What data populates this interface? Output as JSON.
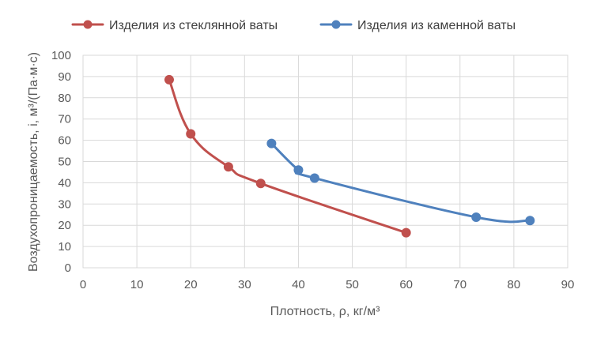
{
  "chart_data": {
    "type": "line",
    "title": "",
    "xlabel": "Плотность, ρ, кг/м³",
    "ylabel": "Воздухопроницаемость, i, м³/(Па·м·с)",
    "xlim": [
      0,
      90
    ],
    "ylim": [
      0,
      100
    ],
    "x_ticks": [
      "0",
      "10",
      "20",
      "30",
      "40",
      "50",
      "60",
      "70",
      "80",
      "90"
    ],
    "y_ticks": [
      "0",
      "10",
      "20",
      "30",
      "40",
      "50",
      "60",
      "70",
      "80",
      "90",
      "100"
    ],
    "grid": true,
    "legend_position": "top",
    "series": [
      {
        "name": "Изделия из стеклянной ваты",
        "color": "#c0504d",
        "x": [
          16,
          20,
          27,
          33,
          60
        ],
        "y": [
          88.5,
          63,
          47.5,
          39.7,
          16.5
        ]
      },
      {
        "name": "Изделия из каменной ваты",
        "color": "#4f81bd",
        "x": [
          35,
          40,
          43,
          73,
          83
        ],
        "y": [
          58.5,
          46,
          42.2,
          23.8,
          22.2
        ]
      }
    ]
  }
}
